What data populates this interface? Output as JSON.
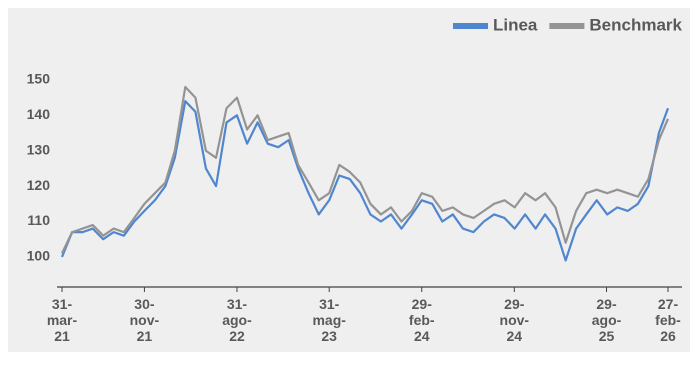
{
  "chart_data": {
    "type": "line",
    "x": [
      "2021-03-31",
      "2021-04-30",
      "2021-05-31",
      "2021-06-30",
      "2021-07-31",
      "2021-08-31",
      "2021-09-30",
      "2021-10-31",
      "2021-11-30",
      "2021-12-31",
      "2022-01-31",
      "2022-02-28",
      "2022-03-31",
      "2022-04-30",
      "2022-05-31",
      "2022-06-30",
      "2022-07-31",
      "2022-08-31",
      "2022-09-30",
      "2022-10-31",
      "2022-11-30",
      "2022-12-31",
      "2023-01-31",
      "2023-02-28",
      "2023-03-31",
      "2023-04-30",
      "2023-05-31",
      "2023-06-30",
      "2023-07-31",
      "2023-08-31",
      "2023-09-30",
      "2023-10-31",
      "2023-11-30",
      "2023-12-31",
      "2024-01-31",
      "2024-02-29",
      "2024-03-31",
      "2024-04-30",
      "2024-05-31",
      "2024-06-30",
      "2024-07-31",
      "2024-08-31",
      "2024-09-30",
      "2024-10-31",
      "2024-11-30",
      "2024-12-31",
      "2025-01-31",
      "2025-02-28",
      "2025-03-31",
      "2025-04-30",
      "2025-05-31",
      "2025-06-30",
      "2025-07-31",
      "2025-08-31",
      "2025-09-30",
      "2025-10-31",
      "2025-11-30",
      "2025-12-31",
      "2026-01-31",
      "2026-02-27"
    ],
    "series": [
      {
        "name": "Linea",
        "color": "#4f86d0",
        "values": [
          100,
          107,
          107,
          108,
          105,
          107,
          106,
          110,
          113,
          116,
          120,
          128,
          144,
          141,
          125,
          120,
          138,
          140,
          132,
          138,
          132,
          131,
          133,
          125,
          118,
          112,
          116,
          123,
          122,
          118,
          112,
          110,
          112,
          108,
          112,
          116,
          115,
          110,
          112,
          108,
          107,
          110,
          112,
          111,
          108,
          112,
          108,
          112,
          108,
          99,
          108,
          112,
          116,
          112,
          114,
          113,
          115,
          120,
          135,
          142
        ]
      },
      {
        "name": "Benchmark",
        "color": "#949494",
        "values": [
          101,
          107,
          108,
          109,
          106,
          108,
          107,
          111,
          115,
          118,
          121,
          130,
          148,
          145,
          130,
          128,
          142,
          145,
          136,
          140,
          133,
          134,
          135,
          126,
          121,
          116,
          118,
          126,
          124,
          121,
          115,
          112,
          114,
          110,
          113,
          118,
          117,
          113,
          114,
          112,
          111,
          113,
          115,
          116,
          114,
          118,
          116,
          118,
          114,
          104,
          113,
          118,
          119,
          118,
          119,
          118,
          117,
          122,
          133,
          139
        ]
      }
    ],
    "xlim": [
      "2021-03-31",
      "2026-02-27"
    ],
    "xticks": [
      {
        "value": "2021-03-31",
        "label": "31-mar-21"
      },
      {
        "value": "2021-11-30",
        "label": "30-nov-21"
      },
      {
        "value": "2022-08-31",
        "label": "31-ago-22"
      },
      {
        "value": "2023-05-31",
        "label": "31-mag-23"
      },
      {
        "value": "2024-02-29",
        "label": "29-feb-24"
      },
      {
        "value": "2024-11-29",
        "label": "29-nov-24"
      },
      {
        "value": "2025-08-29",
        "label": "29-ago-25"
      },
      {
        "value": "2026-02-27",
        "label": "27-feb-26"
      }
    ],
    "ylim": [
      91.5,
      161
    ],
    "yticks": [
      100,
      110,
      120,
      130,
      140,
      150
    ],
    "grid": false,
    "legend": "top-right"
  }
}
